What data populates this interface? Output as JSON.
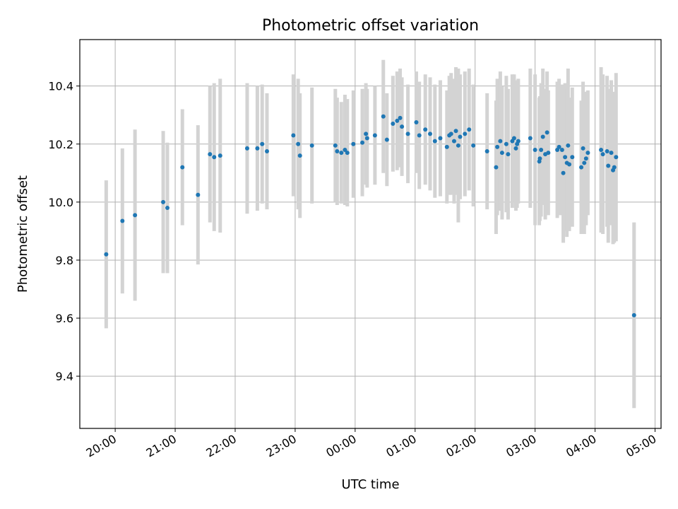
{
  "chart_data": {
    "type": "scatter",
    "title": "Photometric offset variation",
    "xlabel": "UTC time",
    "ylabel": "Photometric offset",
    "x_ticks": [
      "20:00",
      "21:00",
      "22:00",
      "23:00",
      "00:00",
      "01:00",
      "02:00",
      "03:00",
      "04:00",
      "05:00"
    ],
    "y_ticks": [
      "9.4",
      "9.6",
      "9.8",
      "10.0",
      "10.2",
      "10.4"
    ],
    "xlim_hours": [
      19.41,
      29.1
    ],
    "ylim": [
      9.22,
      10.56
    ],
    "grid": true,
    "colors": {
      "point": "#1f77b4",
      "errorbar": "#d3d3d3",
      "grid": "#b0b0b0"
    },
    "x_hours": [
      19.85,
      20.12,
      20.33,
      20.8,
      20.87,
      21.12,
      21.38,
      21.58,
      21.65,
      21.75,
      22.2,
      22.37,
      22.45,
      22.53,
      22.97,
      23.05,
      23.08,
      23.28,
      23.67,
      23.7,
      23.77,
      23.83,
      23.87,
      23.97,
      24.12,
      24.18,
      24.2,
      24.33,
      24.47,
      24.53,
      24.63,
      24.7,
      24.75,
      24.78,
      24.88,
      25.02,
      25.07,
      25.17,
      25.25,
      25.33,
      25.42,
      25.53,
      25.57,
      25.6,
      25.65,
      25.68,
      25.72,
      25.75,
      25.83,
      25.9,
      25.97,
      26.2,
      26.35,
      26.37,
      26.42,
      26.45,
      26.52,
      26.55,
      26.62,
      26.65,
      26.68,
      26.7,
      26.72,
      26.92,
      27.0,
      27.07,
      27.08,
      27.1,
      27.13,
      27.17,
      27.2,
      27.22,
      27.37,
      27.4,
      27.45,
      27.47,
      27.5,
      27.53,
      27.55,
      27.57,
      27.62,
      27.77,
      27.8,
      27.82,
      27.85,
      27.88,
      28.1,
      28.13,
      28.2,
      28.22,
      28.27,
      28.3,
      28.32,
      28.35,
      28.65
    ],
    "y": [
      9.82,
      9.935,
      9.955,
      10.0,
      9.98,
      10.12,
      10.025,
      10.165,
      10.155,
      10.16,
      10.185,
      10.185,
      10.2,
      10.175,
      10.23,
      10.2,
      10.16,
      10.195,
      10.195,
      10.175,
      10.17,
      10.18,
      10.17,
      10.2,
      10.205,
      10.235,
      10.22,
      10.23,
      10.295,
      10.215,
      10.27,
      10.28,
      10.29,
      10.26,
      10.235,
      10.275,
      10.23,
      10.25,
      10.235,
      10.21,
      10.22,
      10.19,
      10.23,
      10.235,
      10.21,
      10.245,
      10.195,
      10.225,
      10.235,
      10.25,
      10.195,
      10.175,
      10.12,
      10.19,
      10.21,
      10.17,
      10.2,
      10.165,
      10.21,
      10.22,
      10.185,
      10.2,
      10.21,
      10.22,
      10.18,
      10.14,
      10.15,
      10.18,
      10.225,
      10.165,
      10.24,
      10.17,
      10.18,
      10.19,
      10.18,
      10.1,
      10.155,
      10.135,
      10.195,
      10.13,
      10.155,
      10.12,
      10.185,
      10.135,
      10.15,
      10.17,
      10.18,
      10.165,
      10.175,
      10.125,
      10.17,
      10.11,
      10.12,
      10.155,
      9.61
    ],
    "yerr": [
      0.255,
      0.25,
      0.295,
      0.245,
      0.225,
      0.2,
      0.24,
      0.235,
      0.255,
      0.265,
      0.225,
      0.215,
      0.205,
      0.2,
      0.21,
      0.225,
      0.215,
      0.2,
      0.195,
      0.185,
      0.175,
      0.19,
      0.185,
      0.185,
      0.185,
      0.175,
      0.17,
      0.17,
      0.195,
      0.16,
      0.165,
      0.17,
      0.17,
      0.17,
      0.17,
      0.175,
      0.185,
      0.19,
      0.195,
      0.195,
      0.2,
      0.195,
      0.205,
      0.21,
      0.215,
      0.22,
      0.265,
      0.215,
      0.215,
      0.21,
      0.21,
      0.2,
      0.23,
      0.235,
      0.24,
      0.23,
      0.235,
      0.225,
      0.23,
      0.22,
      0.215,
      0.22,
      0.215,
      0.24,
      0.26,
      0.22,
      0.215,
      0.23,
      0.235,
      0.225,
      0.21,
      0.215,
      0.235,
      0.235,
      0.225,
      0.24,
      0.255,
      0.255,
      0.265,
      0.23,
      0.24,
      0.23,
      0.23,
      0.245,
      0.23,
      0.215,
      0.285,
      0.275,
      0.26,
      0.265,
      0.25,
      0.255,
      0.26,
      0.29,
      0.32
    ]
  }
}
